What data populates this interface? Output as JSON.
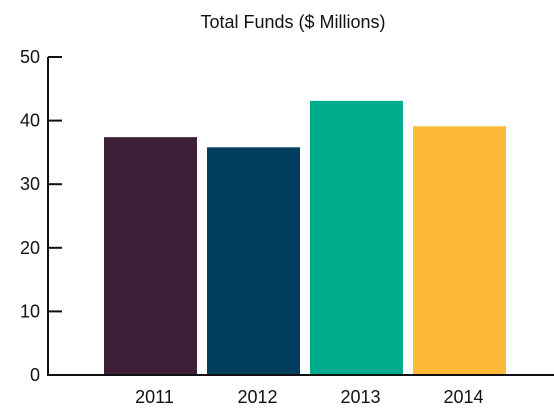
{
  "chart_data": {
    "type": "bar",
    "title": "Total Funds ($ Millions)",
    "xlabel": "",
    "ylabel": "",
    "categories": [
      "2011",
      "2012",
      "2013",
      "2014"
    ],
    "values": [
      37.4,
      35.8,
      43.1,
      39.1
    ],
    "colors": [
      "#3d2038",
      "#023e5d",
      "#00ab8e",
      "#fcb937"
    ],
    "ylim": [
      0,
      50
    ],
    "yticks": [
      "0",
      "10",
      "20",
      "30",
      "40",
      "50"
    ],
    "grid": false,
    "legend": "none"
  }
}
